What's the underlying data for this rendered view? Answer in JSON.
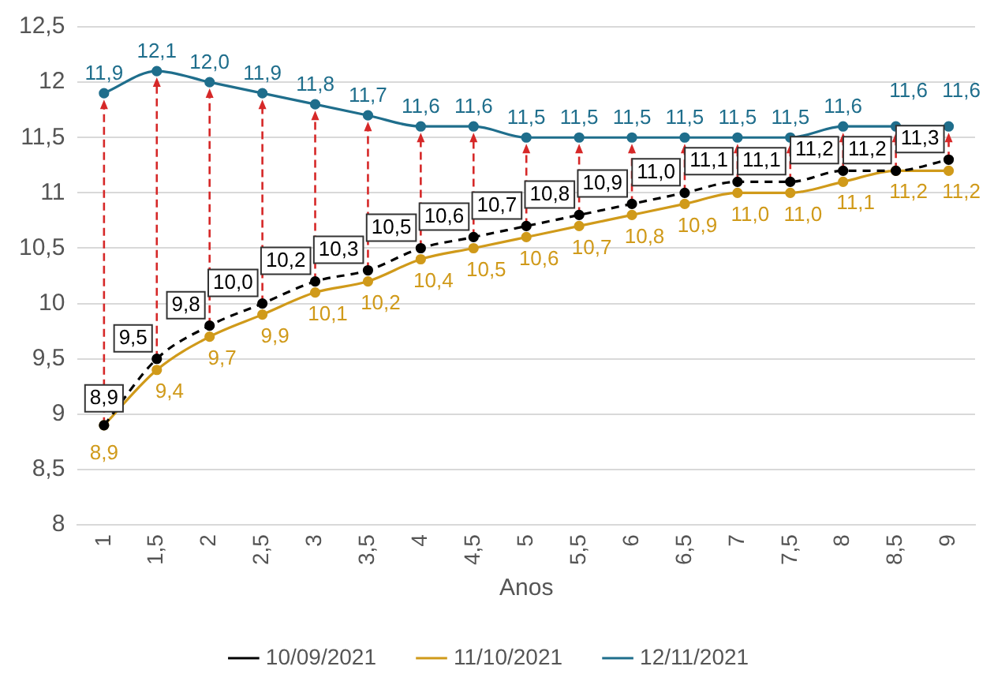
{
  "chart_data": {
    "type": "line",
    "xlabel": "Anos",
    "categories": [
      "1",
      "1,5",
      "2",
      "2,5",
      "3",
      "3,5",
      "4",
      "4,5",
      "5",
      "5,5",
      "6",
      "6,5",
      "7",
      "7,5",
      "8",
      "8,5",
      "9"
    ],
    "series": [
      {
        "name": "10/09/2021",
        "color": "#000000",
        "line_style": "dashed",
        "values": [
          8.9,
          9.5,
          9.8,
          10.0,
          10.2,
          10.3,
          10.5,
          10.6,
          10.7,
          10.8,
          10.9,
          11.0,
          11.1,
          11.1,
          11.2,
          11.2,
          11.3
        ],
        "value_labels": [
          "8,9",
          "9,5",
          "9,8",
          "10,0",
          "10,2",
          "10,3",
          "10,5",
          "10,6",
          "10,7",
          "10,8",
          "10,9",
          "11,0",
          "11,1",
          "11,1",
          "11,2",
          "11,2",
          "11,3"
        ]
      },
      {
        "name": "11/10/2021",
        "color": "#d09a1a",
        "line_style": "solid",
        "values": [
          8.9,
          9.4,
          9.7,
          9.9,
          10.1,
          10.2,
          10.4,
          10.5,
          10.6,
          10.7,
          10.8,
          10.9,
          11.0,
          11.0,
          11.1,
          11.2,
          11.2
        ],
        "value_labels": [
          "8,9",
          "9,4",
          "9,7",
          "9,9",
          "10,1",
          "10,2",
          "10,4",
          "10,5",
          "10,6",
          "10,7",
          "10,8",
          "10,9",
          "11,0",
          "11,0",
          "11,1",
          "11,2",
          "11,2"
        ]
      },
      {
        "name": "12/11/2021",
        "color": "#1f6e8c",
        "line_style": "solid",
        "values": [
          11.9,
          12.1,
          12.0,
          11.9,
          11.8,
          11.7,
          11.6,
          11.6,
          11.5,
          11.5,
          11.5,
          11.5,
          11.5,
          11.5,
          11.6,
          11.6,
          11.6
        ],
        "value_labels": [
          "11,9",
          "12,1",
          "12,0",
          "11,9",
          "11,8",
          "11,7",
          "11,6",
          "11,6",
          "11,5",
          "11,5",
          "11,5",
          "11,5",
          "11,5",
          "11,5",
          "11,6",
          "11,6",
          "11,6"
        ]
      }
    ],
    "ylim": [
      8,
      12.5
    ],
    "yticks": [
      8,
      {
        "value": 8.5,
        "label": "8,5"
      },
      9,
      {
        "value": 9.5,
        "label": "9,5"
      },
      10,
      {
        "value": 10.5,
        "label": "10,5"
      },
      11,
      {
        "value": 11.5,
        "label": "11,5"
      },
      12,
      {
        "value": 12.5,
        "label": "12,5"
      }
    ],
    "grid": "y",
    "legend": "bottom",
    "marker": "circle"
  }
}
